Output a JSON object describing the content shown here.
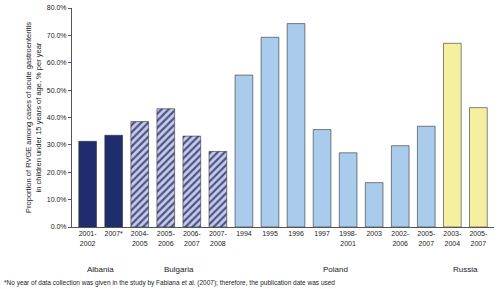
{
  "chart_data": {
    "type": "bar",
    "y_label": [
      "Proportion of RVGE among cases of acute gastroenteritis",
      "in children under 15 years of age, % per year"
    ],
    "categories": [
      "2001-2002",
      "2007*",
      "2004-2005",
      "2005-2006",
      "2006-2007",
      "2007-2008",
      "1994",
      "1995",
      "1996",
      "1997",
      "1998-2001",
      "2003",
      "2002-2006",
      "2005-2007",
      "2003-2004",
      "2005-2007"
    ],
    "series": [
      {
        "name": "Albania",
        "color": "#1f2d6e",
        "marker": "solid",
        "values": [
          31.3,
          33.5,
          null,
          null,
          null,
          null,
          null,
          null,
          null,
          null,
          null,
          null,
          null,
          null,
          null,
          null
        ]
      },
      {
        "name": "Bulgaria",
        "color": "#4b5390",
        "marker": "hatched",
        "values": [
          null,
          null,
          38.5,
          43.2,
          33.2,
          27.6,
          null,
          null,
          null,
          null,
          null,
          null,
          null,
          null,
          null,
          null
        ]
      },
      {
        "name": "Poland",
        "color": "#a9cbec",
        "marker": "solid",
        "values": [
          null,
          null,
          null,
          null,
          null,
          null,
          55.5,
          69.3,
          74.3,
          35.6,
          27.1,
          16.2,
          29.7,
          36.8,
          null,
          null
        ]
      },
      {
        "name": "Russia",
        "color": "#f5f0a0",
        "marker": "solid",
        "values": [
          null,
          null,
          null,
          null,
          null,
          null,
          null,
          null,
          null,
          null,
          null,
          null,
          null,
          null,
          67.1,
          43.6
        ]
      }
    ],
    "ylim": [
      0,
      80
    ],
    "yticks": [
      {
        "value": 0,
        "label": "0.0%"
      },
      {
        "value": 10,
        "label": "10.0%"
      },
      {
        "value": 20,
        "label": "20.0%"
      },
      {
        "value": 30,
        "label": "30.0%"
      },
      {
        "value": 40,
        "label": "40.0%"
      },
      {
        "value": 50,
        "label": "50.0%"
      },
      {
        "value": 60,
        "label": "60.0%"
      },
      {
        "value": 70,
        "label": "70.0%"
      },
      {
        "value": 80,
        "label": "80.0%"
      }
    ],
    "grid": false,
    "legend": "none",
    "footnote": "*No year of data collection was given in the study by Fabiana et al. (2007); therefore, the publication date was used"
  }
}
